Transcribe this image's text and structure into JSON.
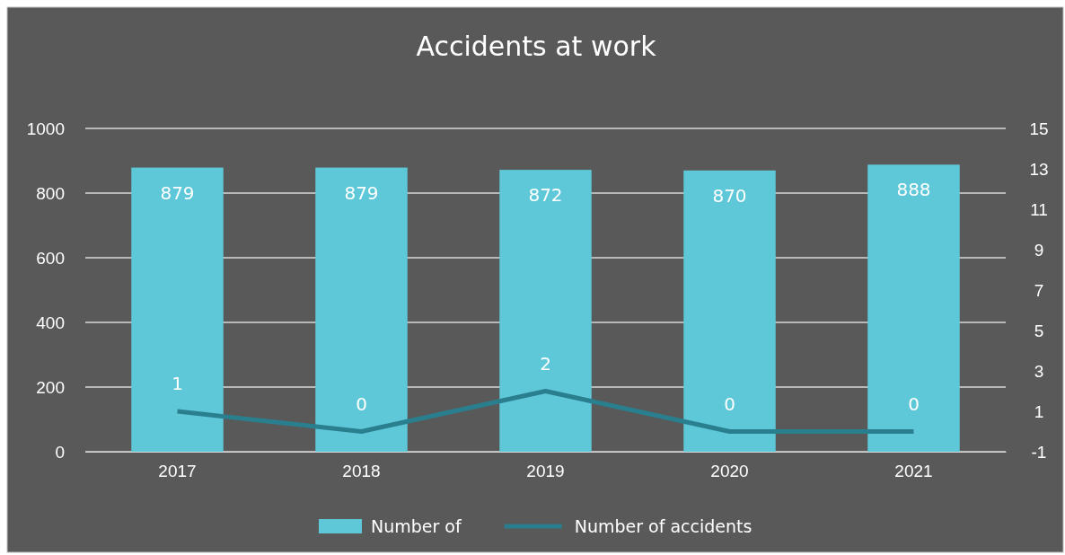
{
  "chart_data": {
    "type": "bar",
    "title": "Accidents at work",
    "categories": [
      "2017",
      "2018",
      "2019",
      "2020",
      "2021"
    ],
    "series": [
      {
        "name": "Number of",
        "color": "#5ec8d8",
        "values": [
          879,
          879,
          872,
          870,
          888
        ]
      },
      {
        "name": "Number of accidents",
        "type": "line",
        "axis": "y2",
        "color": "#2a7f8e",
        "values": [
          1,
          0,
          2,
          0,
          0
        ]
      }
    ],
    "ylim": [
      0,
      1000
    ],
    "yticks": [
      0,
      200,
      400,
      600,
      800,
      1000
    ],
    "y2lim": [
      -1,
      15
    ],
    "y2ticks": [
      -1,
      1,
      3,
      5,
      7,
      9,
      11,
      13,
      15
    ],
    "grid": "y",
    "legend": "bottom",
    "data_labels": true,
    "marker": "none",
    "line_style": "solid"
  }
}
